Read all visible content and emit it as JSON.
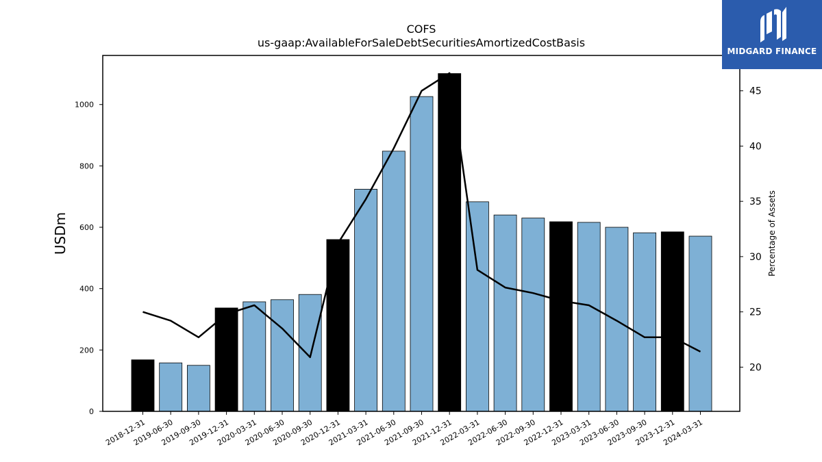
{
  "chart_data": {
    "type": "bar",
    "title": "COFS",
    "subtitle": "us-gaap:AvailableForSaleDebtSecuritiesAmortizedCostBasis",
    "ylabel": "USDm",
    "y2label": "Percentage of Assets",
    "ylim": [
      0,
      1160
    ],
    "y2lim": [
      16,
      48.2
    ],
    "yticks": [
      0,
      200,
      400,
      600,
      800,
      1000
    ],
    "y2ticks": [
      20,
      25,
      30,
      35,
      40,
      45
    ],
    "categories": [
      "2018-12-31",
      "2019-06-30",
      "2019-09-30",
      "2019-12-31",
      "2020-03-31",
      "2020-06-30",
      "2020-09-30",
      "2020-12-31",
      "2021-03-31",
      "2021-06-30",
      "2021-09-30",
      "2021-12-31",
      "2022-03-31",
      "2022-06-30",
      "2022-09-30",
      "2022-12-31",
      "2023-03-31",
      "2023-06-30",
      "2023-09-30",
      "2023-12-31",
      "2024-03-31"
    ],
    "values": [
      168,
      158,
      150,
      337,
      357,
      364,
      381,
      560,
      724,
      848,
      1026,
      1101,
      683,
      640,
      630,
      618,
      616,
      600,
      582,
      585,
      571
    ],
    "bar_colors": [
      "#000000",
      "#7eb0d5",
      "#7eb0d5",
      "#000000",
      "#7eb0d5",
      "#7eb0d5",
      "#7eb0d5",
      "#000000",
      "#7eb0d5",
      "#7eb0d5",
      "#7eb0d5",
      "#000000",
      "#7eb0d5",
      "#7eb0d5",
      "#7eb0d5",
      "#000000",
      "#7eb0d5",
      "#7eb0d5",
      "#7eb0d5",
      "#000000",
      "#7eb0d5"
    ],
    "line_series": {
      "values": [
        25.0,
        24.2,
        22.7,
        24.8,
        25.6,
        23.5,
        20.9,
        31.2,
        35.2,
        39.8,
        45.0,
        46.6,
        28.8,
        27.2,
        26.7,
        26.0,
        25.6,
        24.2,
        22.7,
        22.7,
        21.4
      ]
    },
    "grid": false,
    "legend": "none"
  },
  "logo": {
    "text": "MIDGARD FINANCE",
    "bg_color": "#2b5cad"
  }
}
